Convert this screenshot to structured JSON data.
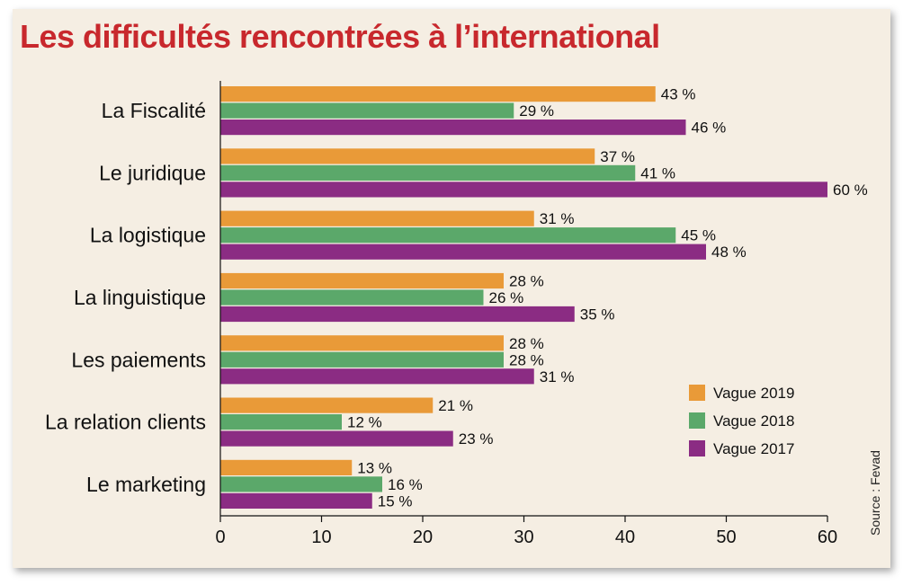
{
  "chart_data": {
    "type": "bar",
    "orientation": "horizontal",
    "title": "Les difficultés rencontrées à l’international",
    "categories": [
      "La Fiscalité",
      "Le juridique",
      "La logistique",
      "La linguistique",
      "Les paiements",
      "La relation clients",
      "Le marketing"
    ],
    "series": [
      {
        "name": "Vague 2019",
        "color": "#e99a38",
        "values": [
          43,
          37,
          31,
          28,
          28,
          21,
          13
        ]
      },
      {
        "name": "Vague 2018",
        "color": "#5ba86a",
        "values": [
          29,
          41,
          45,
          26,
          28,
          12,
          16
        ]
      },
      {
        "name": "Vague 2017",
        "color": "#8b2c83",
        "values": [
          46,
          60,
          48,
          35,
          31,
          23,
          15
        ]
      }
    ],
    "value_suffix": " %",
    "xlim": [
      0,
      60
    ],
    "xticks": [
      0,
      10,
      20,
      30,
      40,
      50,
      60
    ],
    "grid": false,
    "legend_position": "bottom-right",
    "source": "Source : Fevad"
  }
}
